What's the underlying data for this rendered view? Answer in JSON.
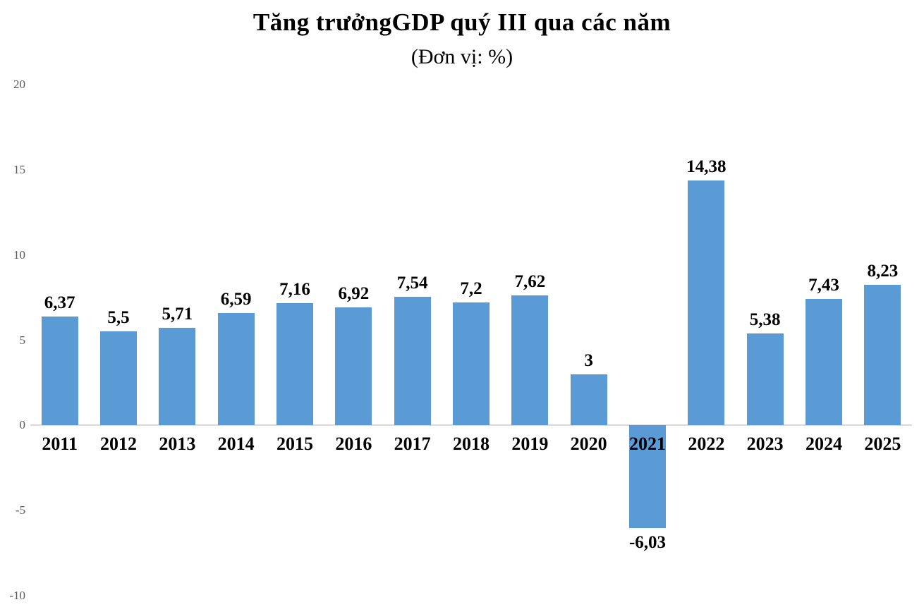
{
  "chart_data": {
    "type": "bar",
    "title": "Tăng trưởngGDP quý III qua các năm",
    "subtitle": "(Đơn vị: %)",
    "categories": [
      "2011",
      "2012",
      "2013",
      "2014",
      "2015",
      "2016",
      "2017",
      "2018",
      "2019",
      "2020",
      "2021",
      "2022",
      "2023",
      "2024",
      "2025"
    ],
    "values": [
      6.37,
      5.5,
      5.71,
      6.59,
      7.16,
      6.92,
      7.54,
      7.2,
      7.62,
      3,
      -6.03,
      14.38,
      5.38,
      7.43,
      8.23
    ],
    "value_labels": [
      "6,37",
      "5,5",
      "5,71",
      "6,59",
      "7,16",
      "6,92",
      "7,54",
      "7,2",
      "7,62",
      "3",
      "-6,03",
      "14,38",
      "5,38",
      "7,43",
      "8,23"
    ],
    "xlabel": "",
    "ylabel": "",
    "ylim": [
      -10,
      20
    ],
    "yticks": [
      20,
      15,
      10,
      5,
      0,
      -5,
      -10
    ],
    "grid": false,
    "legend_position": "none",
    "bar_color": "#5b9bd5",
    "axis_line_color": "#d9d9d9",
    "tick_label_color": "#595959",
    "label_color": "#000000"
  }
}
